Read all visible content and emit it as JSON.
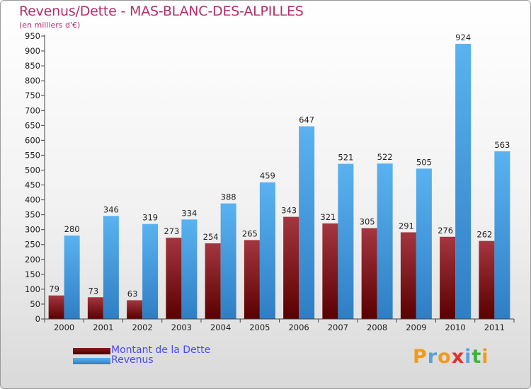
{
  "header": {
    "title": "Revenus/Dette - MAS-BLANC-DES-ALPILLES",
    "subtitle": "(en milliers d'€)"
  },
  "colors": {
    "title": "#b0306a",
    "legend_text": "#4a4af0",
    "dette": "#6b0d0d",
    "revenus": "#3f9ce6"
  },
  "chart_data": {
    "type": "bar",
    "title": "Revenus/Dette - MAS-BLANC-DES-ALPILLES",
    "subtitle": "(en milliers d'€)",
    "xlabel": "",
    "ylabel": "",
    "ylim": [
      0,
      950
    ],
    "yticks": [
      0,
      50,
      100,
      150,
      200,
      250,
      300,
      350,
      400,
      450,
      500,
      550,
      600,
      650,
      700,
      750,
      800,
      850,
      900,
      950
    ],
    "grid": false,
    "legend_position": "bottom-left",
    "categories": [
      "2000",
      "2001",
      "2002",
      "2003",
      "2004",
      "2005",
      "2006",
      "2007",
      "2008",
      "2009",
      "2010",
      "2011"
    ],
    "series": [
      {
        "name": "Montant de la Dette",
        "color": "#6b0d0d",
        "values": [
          79,
          73,
          63,
          273,
          254,
          265,
          343,
          321,
          305,
          291,
          276,
          262
        ]
      },
      {
        "name": "Revenus",
        "color": "#3f9ce6",
        "values": [
          280,
          346,
          319,
          334,
          388,
          459,
          647,
          521,
          522,
          505,
          924,
          563
        ]
      }
    ]
  },
  "legend": {
    "items": [
      {
        "label": "Montant de la Dette",
        "color": "#6b0d0d"
      },
      {
        "label": "Revenus",
        "color": "#3f9ce6"
      }
    ]
  },
  "logo": {
    "text": "Proxiti",
    "letters": [
      "P",
      "r",
      "o",
      "x",
      "i",
      "t",
      "i"
    ],
    "colors": [
      "#f29a1a",
      "#5aa0e0",
      "#f29a1a",
      "#e0302a",
      "#5aa0e0",
      "#3db33d",
      "#f29a1a"
    ]
  }
}
